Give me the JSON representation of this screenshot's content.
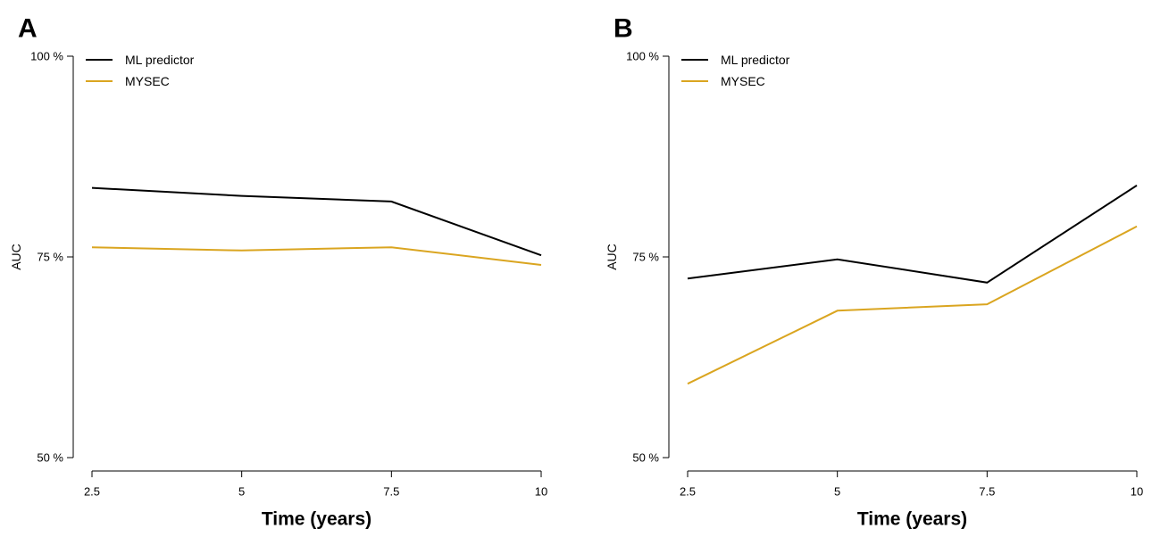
{
  "chart_data": [
    {
      "panel": "A",
      "type": "line",
      "x": [
        2.5,
        5,
        7.5,
        10
      ],
      "x_tick_labels": [
        "2.5",
        "5",
        "7.5",
        "10"
      ],
      "xlabel": "Time (years)",
      "ylabel": "AUC",
      "ylim": [
        50,
        100
      ],
      "y_ticks": [
        50,
        75,
        100
      ],
      "y_tick_labels": [
        "50 %",
        "75 %",
        "100 %"
      ],
      "legend_position": "top-left",
      "grid": false,
      "series": [
        {
          "name": "ML predictor",
          "color": "#000000",
          "values": [
            83.6,
            82.6,
            81.9,
            75.2
          ]
        },
        {
          "name": "MYSEC",
          "color": "#DAA520",
          "values": [
            76.2,
            75.8,
            76.2,
            74.0
          ]
        }
      ]
    },
    {
      "panel": "B",
      "type": "line",
      "x": [
        2.5,
        5,
        7.5,
        10
      ],
      "x_tick_labels": [
        "2.5",
        "5",
        "7.5",
        "10"
      ],
      "xlabel": "Time (years)",
      "ylabel": "AUC",
      "ylim": [
        50,
        100
      ],
      "y_ticks": [
        50,
        75,
        100
      ],
      "y_tick_labels": [
        "50 %",
        "75 %",
        "100 %"
      ],
      "legend_position": "top-left",
      "grid": false,
      "series": [
        {
          "name": "ML predictor",
          "color": "#000000",
          "values": [
            72.3,
            74.7,
            71.8,
            83.9
          ]
        },
        {
          "name": "MYSEC",
          "color": "#DAA520",
          "values": [
            59.2,
            68.3,
            69.1,
            78.8
          ]
        }
      ]
    }
  ]
}
